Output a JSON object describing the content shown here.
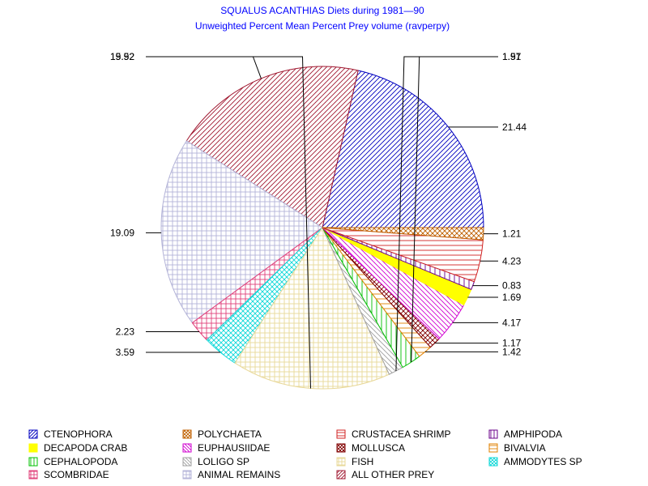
{
  "chart_data": {
    "type": "pie",
    "title": "SQUALUS ACANTHIAS Diets during  1981—90",
    "subtitle": "Unweighted Percent Mean Percent Prey  volume (ravperpy)",
    "slices": [
      {
        "name": "CTENOPHORA",
        "value": 21.44,
        "label": "21.44",
        "color": "#0000c0",
        "pattern": "diag-up"
      },
      {
        "name": "ALL OTHER PREY",
        "value": 19.52,
        "label": "19.52",
        "color": "#a01830",
        "pattern": "diag-up"
      },
      {
        "name": "ANIMAL REMAINS",
        "value": 19.09,
        "label": "19.09",
        "color": "#b4b4d8",
        "pattern": "grid"
      },
      {
        "name": "SCOMBRIDAE",
        "value": 2.23,
        "label": "2.23",
        "color": "#e0407a",
        "pattern": "grid"
      },
      {
        "name": "AMMODYTES SP",
        "value": 3.59,
        "label": "3.59",
        "color": "#10d8d8",
        "pattern": "cross"
      },
      {
        "name": "FISH",
        "value": 15.92,
        "label": "15.92",
        "color": "#e8d898",
        "pattern": "grid"
      },
      {
        "name": "LOLIGO SP",
        "value": 1.51,
        "label": "1.51",
        "color": "#a0a0a0",
        "pattern": "diag-down"
      },
      {
        "name": "CEPHALOPODA",
        "value": 1.97,
        "label": "1.97",
        "color": "#00c000",
        "pattern": "vert"
      },
      {
        "name": "BIVALVIA",
        "value": 1.42,
        "label": "1.42",
        "color": "#e08000",
        "pattern": "horiz"
      },
      {
        "name": "MOLLUSCA",
        "value": 1.17,
        "label": "1.17",
        "color": "#800000",
        "pattern": "cross"
      },
      {
        "name": "EUPHAUSIIDAE",
        "value": 4.17,
        "label": "4.17",
        "color": "#d000d0",
        "pattern": "diag-down"
      },
      {
        "name": "DECAPODA CRAB",
        "value": 1.69,
        "label": "1.69",
        "color": "#ffff00",
        "pattern": "solid"
      },
      {
        "name": "AMPHIPODA",
        "value": 0.83,
        "label": "0.83",
        "color": "#6a008a",
        "pattern": "vert"
      },
      {
        "name": "CRUSTACEA SHRIMP",
        "value": 4.23,
        "label": "4.23",
        "color": "#d02020",
        "pattern": "horiz"
      },
      {
        "name": "POLYCHAETA",
        "value": 1.21,
        "label": "1.21",
        "color": "#c06000",
        "pattern": "cross"
      }
    ],
    "legend": [
      "CTENOPHORA",
      "POLYCHAETA",
      "CRUSTACEA SHRIMP",
      "AMPHIPODA",
      "DECAPODA CRAB",
      "EUPHAUSIIDAE",
      "MOLLUSCA",
      "BIVALVIA",
      "CEPHALOPODA",
      "LOLIGO SP",
      "FISH",
      "AMMODYTES SP",
      "SCOMBRIDAE",
      "ANIMAL REMAINS",
      "ALL OTHER PREY"
    ]
  }
}
